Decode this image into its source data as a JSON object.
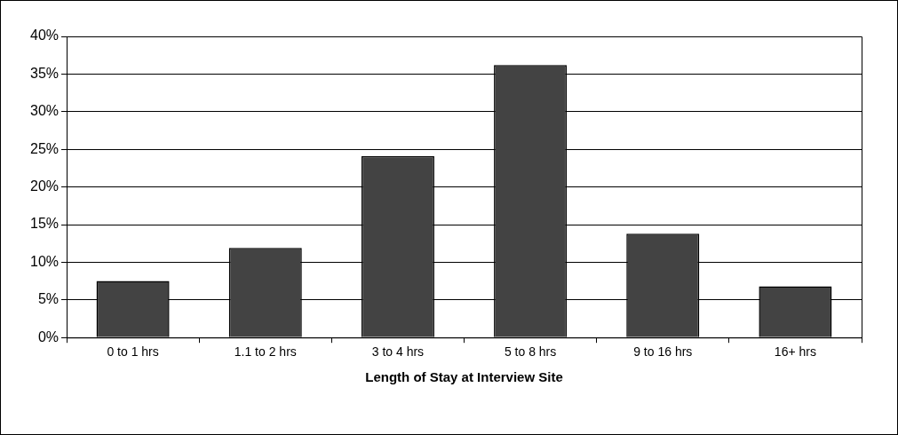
{
  "chart_data": {
    "type": "bar",
    "xlabel": "Length of Stay at Interview Site",
    "categories": [
      "0 to 1 hrs",
      "1.1 to 2 hrs",
      "3 to 4 hrs",
      "5 to 8 hrs",
      "9 to 16 hrs",
      "16+ hrs"
    ],
    "values": [
      7.5,
      11.9,
      24.1,
      36.2,
      13.8,
      6.8
    ],
    "color": "#434343",
    "ylim": [
      0,
      40
    ],
    "yticks": [
      {
        "value": 0,
        "label": "0%"
      },
      {
        "value": 5,
        "label": "5%"
      },
      {
        "value": 10,
        "label": "10%"
      },
      {
        "value": 15,
        "label": "15%"
      },
      {
        "value": 20,
        "label": "20%"
      },
      {
        "value": 25,
        "label": "25%"
      },
      {
        "value": 30,
        "label": "30%"
      },
      {
        "value": 35,
        "label": "35%"
      },
      {
        "value": 40,
        "label": "40%"
      }
    ],
    "grid": "y",
    "legend": false
  }
}
